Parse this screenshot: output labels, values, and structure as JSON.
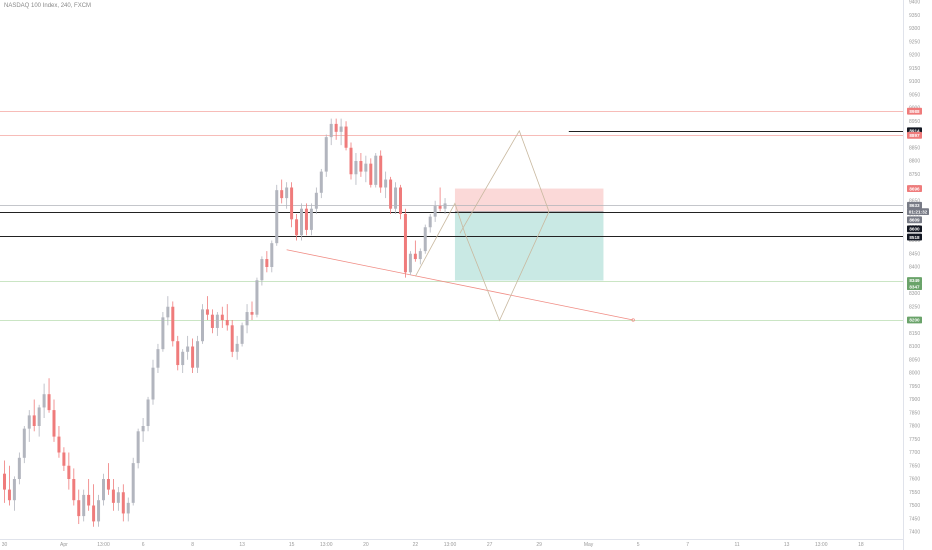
{
  "symbol_title": "NASDAQ 100 Index, 240, FXCM",
  "colors": {
    "up_candle": "#b2b5be",
    "down_candle": "#ef7b7b",
    "axis_text": "#9a9a9a",
    "level_red": "#f4a6a0",
    "level_green": "#b9dcb1",
    "level_black": "#222222",
    "level_gray": "#b0b3ba",
    "trend_red": "#f08c84",
    "path_line": "#c9b9a0",
    "stop_zone": "#fbd9d8",
    "target_zone": "#c9e9e4"
  },
  "chart_data": {
    "type": "candlestick",
    "title": "NASDAQ 100 Index, 240, FXCM",
    "ylim": [
      7380,
      9420
    ],
    "grid": false,
    "y_ticks": [
      7400,
      7450,
      7500,
      7550,
      7600,
      7650,
      7700,
      7750,
      7800,
      7850,
      7900,
      7950,
      8000,
      8050,
      8100,
      8150,
      8200,
      8250,
      8300,
      8350,
      8400,
      8450,
      8500,
      8550,
      8600,
      8650,
      8700,
      8750,
      8800,
      8850,
      8900,
      8950,
      9000,
      9050,
      9100,
      9150,
      9200,
      9250,
      9300,
      9350,
      9400
    ],
    "x_ticks": [
      {
        "bar": 0,
        "label": "30"
      },
      {
        "bar": 12,
        "label": "Apr"
      },
      {
        "bar": 20,
        "label": "13:00"
      },
      {
        "bar": 28,
        "label": "6"
      },
      {
        "bar": 38,
        "label": "8"
      },
      {
        "bar": 48,
        "label": "13"
      },
      {
        "bar": 58,
        "label": "15"
      },
      {
        "bar": 65,
        "label": "13:00"
      },
      {
        "bar": 73,
        "label": "20"
      },
      {
        "bar": 83,
        "label": "22"
      },
      {
        "bar": 90,
        "label": "13:00"
      },
      {
        "bar": 98,
        "label": "27"
      },
      {
        "bar": 108,
        "label": "29"
      },
      {
        "bar": 118,
        "label": "May"
      },
      {
        "bar": 128,
        "label": "5"
      },
      {
        "bar": 138,
        "label": "7"
      },
      {
        "bar": 148,
        "label": "11"
      },
      {
        "bar": 158,
        "label": "13"
      },
      {
        "bar": 165,
        "label": "13:00"
      },
      {
        "bar": 173,
        "label": "18"
      }
    ],
    "series": [
      {
        "values": [
          [
            7620,
            7670,
            7510,
            7560
          ],
          [
            7560,
            7650,
            7500,
            7520
          ],
          [
            7520,
            7610,
            7480,
            7600
          ],
          [
            7600,
            7700,
            7580,
            7680
          ],
          [
            7680,
            7800,
            7660,
            7790
          ],
          [
            7790,
            7860,
            7740,
            7840
          ],
          [
            7840,
            7900,
            7780,
            7800
          ],
          [
            7800,
            7880,
            7760,
            7870
          ],
          [
            7870,
            7960,
            7830,
            7920
          ],
          [
            7920,
            7980,
            7850,
            7860
          ],
          [
            7860,
            7900,
            7740,
            7760
          ],
          [
            7760,
            7800,
            7680,
            7700
          ],
          [
            7700,
            7720,
            7630,
            7650
          ],
          [
            7650,
            7700,
            7560,
            7600
          ],
          [
            7600,
            7640,
            7500,
            7520
          ],
          [
            7520,
            7560,
            7430,
            7460
          ],
          [
            7460,
            7560,
            7440,
            7540
          ],
          [
            7540,
            7600,
            7480,
            7500
          ],
          [
            7500,
            7580,
            7420,
            7440
          ],
          [
            7440,
            7540,
            7420,
            7520
          ],
          [
            7520,
            7620,
            7500,
            7600
          ],
          [
            7600,
            7660,
            7540,
            7560
          ],
          [
            7560,
            7600,
            7480,
            7510
          ],
          [
            7510,
            7570,
            7480,
            7550
          ],
          [
            7550,
            7580,
            7440,
            7470
          ],
          [
            7470,
            7530,
            7440,
            7510
          ],
          [
            7510,
            7680,
            7500,
            7660
          ],
          [
            7660,
            7790,
            7640,
            7780
          ],
          [
            7780,
            7830,
            7740,
            7800
          ],
          [
            7800,
            7910,
            7780,
            7900
          ],
          [
            7900,
            8050,
            7880,
            8020
          ],
          [
            8020,
            8110,
            8000,
            8090
          ],
          [
            8090,
            8230,
            8080,
            8210
          ],
          [
            8210,
            8290,
            8180,
            8250
          ],
          [
            8250,
            8270,
            8100,
            8120
          ],
          [
            8120,
            8140,
            8010,
            8030
          ],
          [
            8030,
            8090,
            8000,
            8080
          ],
          [
            8080,
            8140,
            8050,
            8100
          ],
          [
            8100,
            8130,
            8000,
            8020
          ],
          [
            8020,
            8140,
            8000,
            8120
          ],
          [
            8120,
            8260,
            8110,
            8240
          ],
          [
            8240,
            8290,
            8200,
            8220
          ],
          [
            8220,
            8240,
            8150,
            8170
          ],
          [
            8170,
            8230,
            8140,
            8220
          ],
          [
            8220,
            8250,
            8170,
            8200
          ],
          [
            8200,
            8260,
            8160,
            8180
          ],
          [
            8180,
            8200,
            8060,
            8080
          ],
          [
            8080,
            8140,
            8050,
            8110
          ],
          [
            8110,
            8190,
            8100,
            8180
          ],
          [
            8180,
            8260,
            8150,
            8230
          ],
          [
            8230,
            8270,
            8200,
            8220
          ],
          [
            8220,
            8360,
            8210,
            8350
          ],
          [
            8350,
            8440,
            8330,
            8430
          ],
          [
            8430,
            8460,
            8380,
            8400
          ],
          [
            8400,
            8500,
            8380,
            8490
          ],
          [
            8490,
            8710,
            8480,
            8690
          ],
          [
            8690,
            8730,
            8640,
            8660
          ],
          [
            8660,
            8720,
            8620,
            8700
          ],
          [
            8700,
            8720,
            8550,
            8580
          ],
          [
            8580,
            8600,
            8500,
            8520
          ],
          [
            8520,
            8640,
            8500,
            8620
          ],
          [
            8620,
            8640,
            8520,
            8540
          ],
          [
            8540,
            8640,
            8520,
            8620
          ],
          [
            8620,
            8700,
            8600,
            8680
          ],
          [
            8680,
            8770,
            8660,
            8760
          ],
          [
            8760,
            8900,
            8740,
            8890
          ],
          [
            8890,
            8960,
            8860,
            8940
          ],
          [
            8940,
            8960,
            8880,
            8910
          ],
          [
            8910,
            8960,
            8860,
            8930
          ],
          [
            8930,
            8950,
            8840,
            8850
          ],
          [
            8850,
            8870,
            8730,
            8750
          ],
          [
            8750,
            8830,
            8710,
            8800
          ],
          [
            8800,
            8830,
            8740,
            8760
          ],
          [
            8760,
            8820,
            8720,
            8790
          ],
          [
            8790,
            8810,
            8700,
            8710
          ],
          [
            8710,
            8830,
            8700,
            8820
          ],
          [
            8820,
            8840,
            8680,
            8700
          ],
          [
            8700,
            8760,
            8660,
            8730
          ],
          [
            8730,
            8740,
            8600,
            8620
          ],
          [
            8620,
            8720,
            8600,
            8700
          ],
          [
            8700,
            8710,
            8580,
            8600
          ],
          [
            8600,
            8620,
            8360,
            8380
          ],
          [
            8380,
            8460,
            8370,
            8450
          ],
          [
            8450,
            8500,
            8420,
            8430
          ],
          [
            8430,
            8470,
            8410,
            8460
          ],
          [
            8460,
            8560,
            8450,
            8550
          ],
          [
            8550,
            8600,
            8530,
            8590
          ],
          [
            8590,
            8650,
            8570,
            8630
          ],
          [
            8630,
            8700,
            8610,
            8620
          ],
          [
            8620,
            8660,
            8600,
            8640
          ]
        ]
      }
    ],
    "levels": [
      {
        "price": 8988,
        "kind": "red"
      },
      {
        "price": 8897,
        "kind": "red"
      },
      {
        "price": 8633,
        "kind": "gray"
      },
      {
        "price": 8609,
        "kind": "black"
      },
      {
        "price": 8518,
        "kind": "black"
      },
      {
        "price": 8349,
        "kind": "green"
      },
      {
        "price": 8200,
        "kind": "green"
      },
      {
        "price": 8914,
        "kind": "black",
        "from_bar": 114
      }
    ],
    "price_labels": [
      {
        "text": "8988",
        "price": 8988,
        "color": "#ef7b7b"
      },
      {
        "text": "8914",
        "price": 8914,
        "color": "#131722"
      },
      {
        "text": "8897",
        "price": 8897,
        "color": "#ef7b7b"
      },
      {
        "text": "8696",
        "price": 8696,
        "color": "#ef7b7b"
      },
      {
        "text": "8633",
        "price": 8633,
        "color": "#787b86"
      },
      {
        "text": "01:21:32",
        "price": 8609,
        "color": "#787b86"
      },
      {
        "text": "8609",
        "price": 8578,
        "color": "#787b86"
      },
      {
        "text": "8600",
        "price": 8544,
        "color": "#131722"
      },
      {
        "text": "8518",
        "price": 8513,
        "color": "#131722"
      },
      {
        "text": "8349",
        "price": 8349,
        "color": "#6aa36a"
      },
      {
        "text": "8347",
        "price": 8326,
        "color": "#6aa36a"
      },
      {
        "text": "8200",
        "price": 8200,
        "color": "#6aa36a"
      }
    ],
    "position_tool": {
      "from_bar": 91,
      "to_bar": 121,
      "entry": 8609,
      "stop": 8696,
      "target": 8349
    },
    "trendline": [
      {
        "bar": 57,
        "price": 8465
      },
      {
        "bar": 127,
        "price": 8200
      }
    ],
    "projection_path": [
      {
        "bar": 83,
        "price": 8365
      },
      {
        "bar": 91,
        "price": 8640
      },
      {
        "bar": 93,
        "price": 8527
      },
      {
        "bar": 100,
        "price": 8198
      },
      {
        "bar": 110,
        "price": 8609
      },
      {
        "bar": 104,
        "price": 8914
      },
      {
        "bar": 92,
        "price": 8527
      }
    ]
  }
}
